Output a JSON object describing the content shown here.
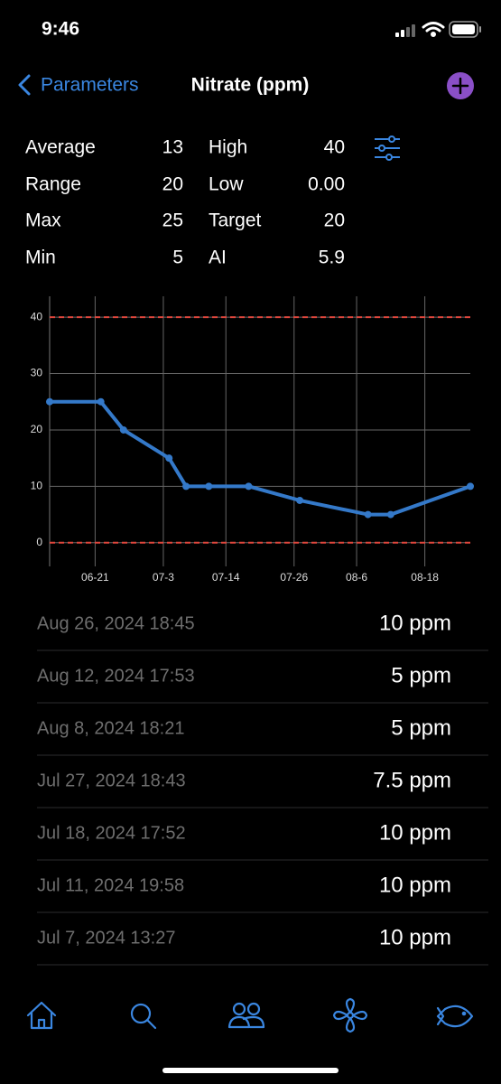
{
  "status_bar": {
    "time": "9:46"
  },
  "nav": {
    "back": "Parameters",
    "title": "Nitrate (ppm)"
  },
  "stats": [
    [
      {
        "label": "Average",
        "value": "13"
      },
      {
        "label": "High",
        "value": "40"
      }
    ],
    [
      {
        "label": "Range",
        "value": "20"
      },
      {
        "label": "Low",
        "value": "0.00"
      }
    ],
    [
      {
        "label": "Max",
        "value": "25"
      },
      {
        "label": "Target",
        "value": "20"
      }
    ],
    [
      {
        "label": "Min",
        "value": "5"
      },
      {
        "label": "AI",
        "value": "5.9"
      }
    ]
  ],
  "chart_data": {
    "type": "line",
    "x": [
      "06-13",
      "06-22",
      "06-26",
      "07-4",
      "07-7",
      "07-11",
      "07-18",
      "07-27",
      "08-8",
      "08-12",
      "08-26"
    ],
    "values": [
      25,
      25,
      20,
      15,
      10,
      10,
      10,
      7.5,
      5,
      5,
      10
    ],
    "color": "#3479c9",
    "xlim": [
      "06-13",
      "08-26"
    ],
    "xticks": [
      "06-21",
      "07-3",
      "07-14",
      "07-26",
      "08-6",
      "08-18"
    ],
    "ylim": [
      -4.2,
      43.7
    ],
    "yticks": [
      0,
      10,
      20,
      30,
      40
    ],
    "grid": true,
    "reference_lines": [
      {
        "value": 40,
        "color": "#e0463c"
      },
      {
        "value": 0,
        "color": "#e0463c"
      }
    ]
  },
  "entries": [
    {
      "date": "Aug 26, 2024 18:45",
      "value": "10 ppm"
    },
    {
      "date": "Aug 12, 2024 17:53",
      "value": "5 ppm"
    },
    {
      "date": "Aug 8, 2024 18:21",
      "value": "5 ppm"
    },
    {
      "date": "Jul 27, 2024 18:43",
      "value": "7.5 ppm"
    },
    {
      "date": "Jul 18, 2024 17:52",
      "value": "10 ppm"
    },
    {
      "date": "Jul 11, 2024 19:58",
      "value": "10 ppm"
    },
    {
      "date": "Jul 7, 2024 13:27",
      "value": "10 ppm"
    }
  ]
}
